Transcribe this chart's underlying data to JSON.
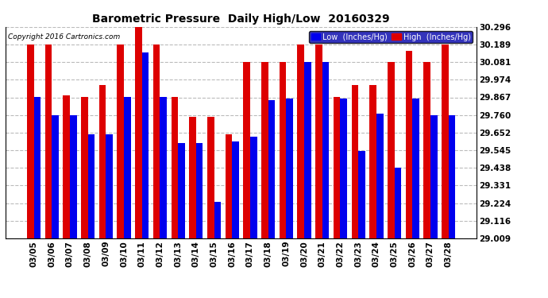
{
  "title": "Barometric Pressure  Daily High/Low  20160329",
  "copyright": "Copyright 2016 Cartronics.com",
  "legend_low": "Low  (Inches/Hg)",
  "legend_high": "High  (Inches/Hg)",
  "low_color": "#0000ee",
  "high_color": "#dd0000",
  "background_color": "#ffffff",
  "dates": [
    "03/05",
    "03/06",
    "03/07",
    "03/08",
    "03/09",
    "03/10",
    "03/11",
    "03/12",
    "03/13",
    "03/14",
    "03/15",
    "03/16",
    "03/17",
    "03/18",
    "03/19",
    "03/20",
    "03/21",
    "03/22",
    "03/23",
    "03/24",
    "03/25",
    "03/26",
    "03/27",
    "03/28"
  ],
  "low_values": [
    29.87,
    29.76,
    29.76,
    29.64,
    29.64,
    29.87,
    30.14,
    29.87,
    29.59,
    29.59,
    29.23,
    29.6,
    29.63,
    29.85,
    29.86,
    30.08,
    30.08,
    29.86,
    29.54,
    29.77,
    29.44,
    29.86,
    29.76,
    29.76
  ],
  "high_values": [
    30.19,
    30.19,
    29.88,
    29.87,
    29.94,
    30.19,
    30.3,
    30.19,
    29.87,
    29.75,
    29.75,
    29.64,
    30.08,
    30.08,
    30.08,
    30.19,
    30.19,
    29.87,
    29.94,
    29.94,
    30.08,
    30.15,
    30.08,
    30.19
  ],
  "ylim_min": 29.009,
  "ylim_max": 30.296,
  "yticks": [
    29.009,
    29.116,
    29.224,
    29.331,
    29.438,
    29.545,
    29.652,
    29.76,
    29.867,
    29.974,
    30.081,
    30.189,
    30.296
  ],
  "grid_color": "#bbbbbb",
  "bar_width": 0.38
}
